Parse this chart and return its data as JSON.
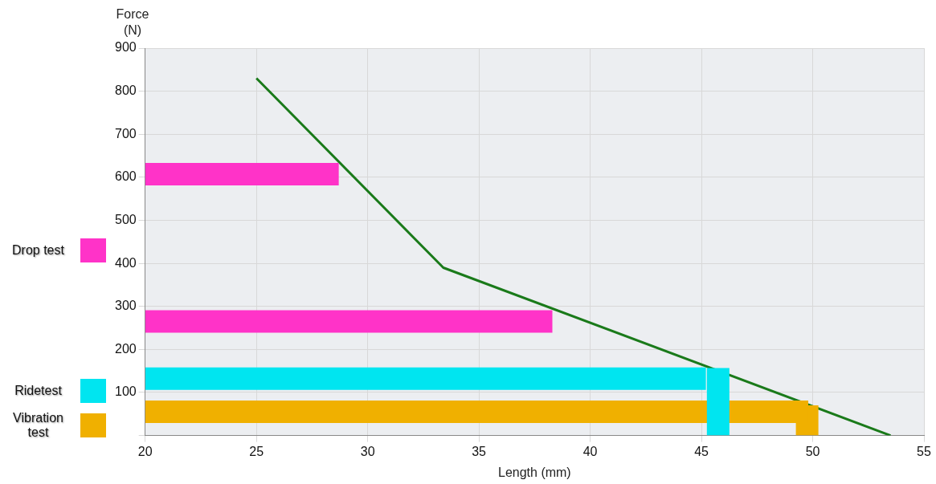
{
  "chart_data": {
    "type": "line",
    "xlabel": "Length (mm)",
    "ylabel": "Force (N)",
    "xlim": [
      20,
      55
    ],
    "xticks": [
      20,
      25,
      30,
      35,
      40,
      45,
      50,
      55
    ],
    "ylim": [
      0,
      900
    ],
    "yticks": [
      {
        "value": 0,
        "label": null
      },
      100,
      200,
      300,
      400,
      500,
      600,
      700,
      800,
      900
    ],
    "grid": true,
    "legend": "left",
    "marker": "none",
    "line_style": "solid",
    "series": [
      {
        "name": "Drop test",
        "color": "#ff33c8",
        "x": [
          20,
          28.7
        ],
        "values": [
          607,
          607
        ]
      },
      {
        "color": "#ff33c8",
        "x": [
          20,
          38.3
        ],
        "values": [
          265,
          265
        ]
      },
      {
        "name": "Ridetest",
        "color": "#00e5f0",
        "x": [
          20,
          45.2
        ],
        "values": [
          132,
          132
        ]
      },
      {
        "color": "#00e5f0",
        "x": [
          45.75,
          45.75
        ],
        "values": [
          0,
          157
        ]
      },
      {
        "name": "Vibration test",
        "color": "#f0b000",
        "x": [
          20,
          49.8
        ],
        "values": [
          55,
          55
        ]
      },
      {
        "color": "#f0b000",
        "x": [
          49.75,
          49.75
        ],
        "values": [
          0,
          70
        ]
      },
      {
        "color": "#1a7a1a",
        "x": [
          25,
          33.4,
          53.5
        ],
        "values": [
          830,
          390,
          0
        ]
      }
    ]
  }
}
